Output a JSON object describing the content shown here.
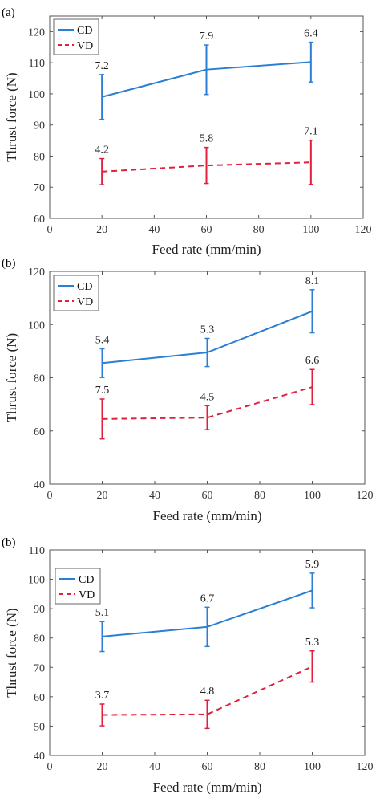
{
  "colors": {
    "cd": "#2a7fd4",
    "vd": "#e0203c",
    "axis": "#000000",
    "label_text": "#222222"
  },
  "chart_data": [
    {
      "type": "line",
      "panel_label": "(a)",
      "xlabel": "Feed rate (mm/min)",
      "ylabel": "Thrust force (N)",
      "xlim": [
        0,
        120
      ],
      "ylim": [
        60,
        125
      ],
      "x_ticks": [
        0,
        20,
        40,
        60,
        80,
        100,
        120
      ],
      "y_ticks": [
        60,
        70,
        80,
        90,
        100,
        110,
        120
      ],
      "grid": false,
      "legend_position": "top-left",
      "x": [
        20,
        60,
        100
      ],
      "series": [
        {
          "name": "CD",
          "key": "cd",
          "style": "solid",
          "values": [
            99.0,
            107.8,
            110.2
          ],
          "err_low": [
            91.8,
            99.8,
            103.8
          ],
          "err_high": [
            106.2,
            115.7,
            116.6
          ],
          "labels": [
            "7.2",
            "7.9",
            "6.4"
          ]
        },
        {
          "name": "VD",
          "key": "vd",
          "style": "dashed",
          "values": [
            75.0,
            77.0,
            78.0
          ],
          "err_low": [
            70.8,
            71.2,
            70.9
          ],
          "err_high": [
            79.2,
            82.8,
            85.1
          ],
          "labels": [
            "4.2",
            "5.8",
            "7.1"
          ]
        }
      ]
    },
    {
      "type": "line",
      "panel_label": "(b)",
      "xlabel": "Feed rate (mm/min)",
      "ylabel": "Thrust force (N)",
      "xlim": [
        0,
        120
      ],
      "ylim": [
        40,
        120
      ],
      "x_ticks": [
        0,
        20,
        40,
        60,
        80,
        100,
        120
      ],
      "y_ticks": [
        40,
        60,
        80,
        100,
        120
      ],
      "grid": false,
      "legend_position": "top-left",
      "x": [
        20,
        60,
        100
      ],
      "series": [
        {
          "name": "CD",
          "key": "cd",
          "style": "solid",
          "values": [
            85.5,
            89.5,
            105.0
          ],
          "err_low": [
            80.1,
            84.2,
            96.9
          ],
          "err_high": [
            90.9,
            94.8,
            113.1
          ],
          "labels": [
            "5.4",
            "5.3",
            "8.1"
          ]
        },
        {
          "name": "VD",
          "key": "vd",
          "style": "dashed",
          "values": [
            64.5,
            65.0,
            76.5
          ],
          "err_low": [
            57.0,
            60.5,
            69.9
          ],
          "err_high": [
            72.0,
            69.5,
            83.1
          ],
          "labels": [
            "7.5",
            "4.5",
            "6.6"
          ]
        }
      ]
    },
    {
      "type": "line",
      "panel_label": "(b)",
      "xlabel": "Feed rate (mm/min)",
      "ylabel": "Thrust force (N)",
      "xlim": [
        0,
        120
      ],
      "ylim": [
        40,
        110
      ],
      "x_ticks": [
        0,
        20,
        40,
        60,
        80,
        100,
        120
      ],
      "y_ticks": [
        40,
        50,
        60,
        70,
        80,
        90,
        100,
        110
      ],
      "grid": false,
      "legend_position": "top-left",
      "x": [
        20,
        60,
        100
      ],
      "series": [
        {
          "name": "CD",
          "key": "cd",
          "style": "solid",
          "values": [
            80.5,
            83.8,
            96.2
          ],
          "err_low": [
            75.4,
            77.1,
            90.3
          ],
          "err_high": [
            85.6,
            90.5,
            102.1
          ],
          "labels": [
            "5.1",
            "6.7",
            "5.9"
          ]
        },
        {
          "name": "VD",
          "key": "vd",
          "style": "dashed",
          "values": [
            53.8,
            54.0,
            70.3
          ],
          "err_low": [
            50.1,
            49.2,
            65.0
          ],
          "err_high": [
            57.5,
            58.8,
            75.6
          ],
          "labels": [
            "3.7",
            "4.8",
            "5.3"
          ]
        }
      ]
    }
  ]
}
